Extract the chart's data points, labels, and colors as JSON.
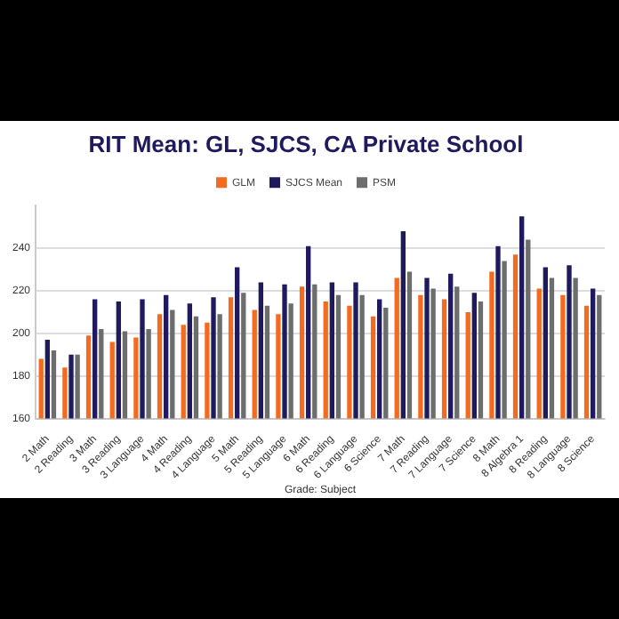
{
  "chart_data": {
    "type": "bar",
    "title": "RIT Mean: GL, SJCS, CA Private School",
    "xlabel": "Grade: Subject",
    "categories": [
      "2 Math",
      "2 Reading",
      "3 Math",
      "3 Reading",
      "3 Language",
      "4 Math",
      "4 Reading",
      "4 Language",
      "5 Math",
      "5 Reading",
      "5 Language",
      "6 Math",
      "6 Reading",
      "6 Language",
      "6 Science",
      "7 Math",
      "7 Reading",
      "7 Language",
      "7 Science",
      "8 Math",
      "8 Algebra 1",
      "8 Reading",
      "8 Language",
      "8 Science"
    ],
    "series": [
      {
        "name": "GLM",
        "color": "#f26b21",
        "values": [
          188,
          184,
          199,
          196,
          198,
          209,
          204,
          205,
          217,
          211,
          209,
          222,
          215,
          213,
          208,
          226,
          218,
          216,
          210,
          229,
          237,
          221,
          218,
          213
        ]
      },
      {
        "name": "SJCS Mean",
        "color": "#1f1a5e",
        "values": [
          197,
          190,
          216,
          215,
          216,
          218,
          214,
          217,
          231,
          224,
          223,
          241,
          224,
          224,
          216,
          248,
          226,
          228,
          219,
          241,
          255,
          231,
          232,
          221
        ]
      },
      {
        "name": "PSM",
        "color": "#6d6d6d",
        "values": [
          192,
          190,
          202,
          201,
          202,
          211,
          208,
          209,
          219,
          213,
          214,
          223,
          218,
          218,
          212,
          229,
          221,
          222,
          215,
          234,
          244,
          226,
          226,
          218
        ]
      }
    ],
    "ylim": [
      160,
      260
    ],
    "yticks": [
      160,
      180,
      200,
      220,
      240
    ],
    "grid": "y",
    "legend": "top"
  }
}
